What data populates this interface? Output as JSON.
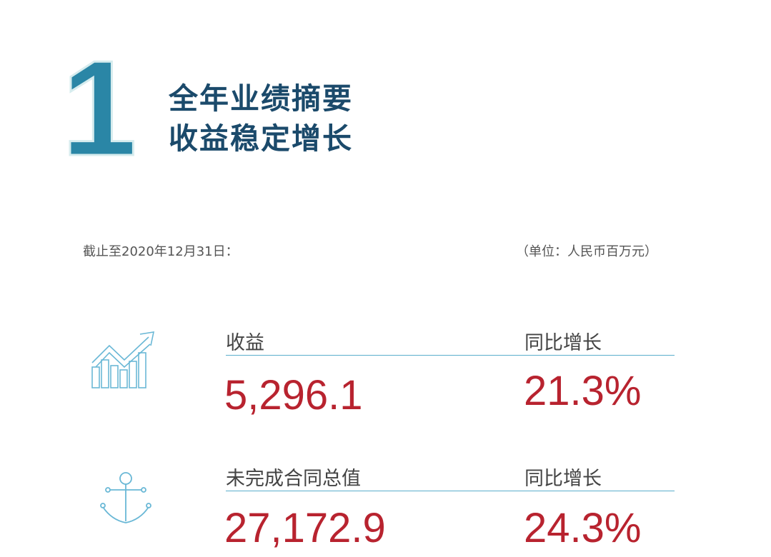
{
  "header": {
    "section_number": "1",
    "title_line1": "全年业绩摘要",
    "title_line2": "收益稳定增长"
  },
  "meta": {
    "date_note": "截止至2020年12月31日：",
    "unit_note": "（单位：人民币百万元）"
  },
  "colors": {
    "title": "#1b4a6b",
    "accent_number": "#2a86a6",
    "value": "#b8232f",
    "rule": "#5aaecc"
  },
  "metrics": [
    {
      "icon": "growth-chart-icon",
      "label": "收益",
      "value": "5,296.1",
      "growth_label": "同比增长",
      "growth": "21.3%"
    },
    {
      "icon": "anchor-icon",
      "label": "未完成合同总值",
      "value": "27,172.9",
      "growth_label": "同比增长",
      "growth": "24.3%"
    }
  ]
}
